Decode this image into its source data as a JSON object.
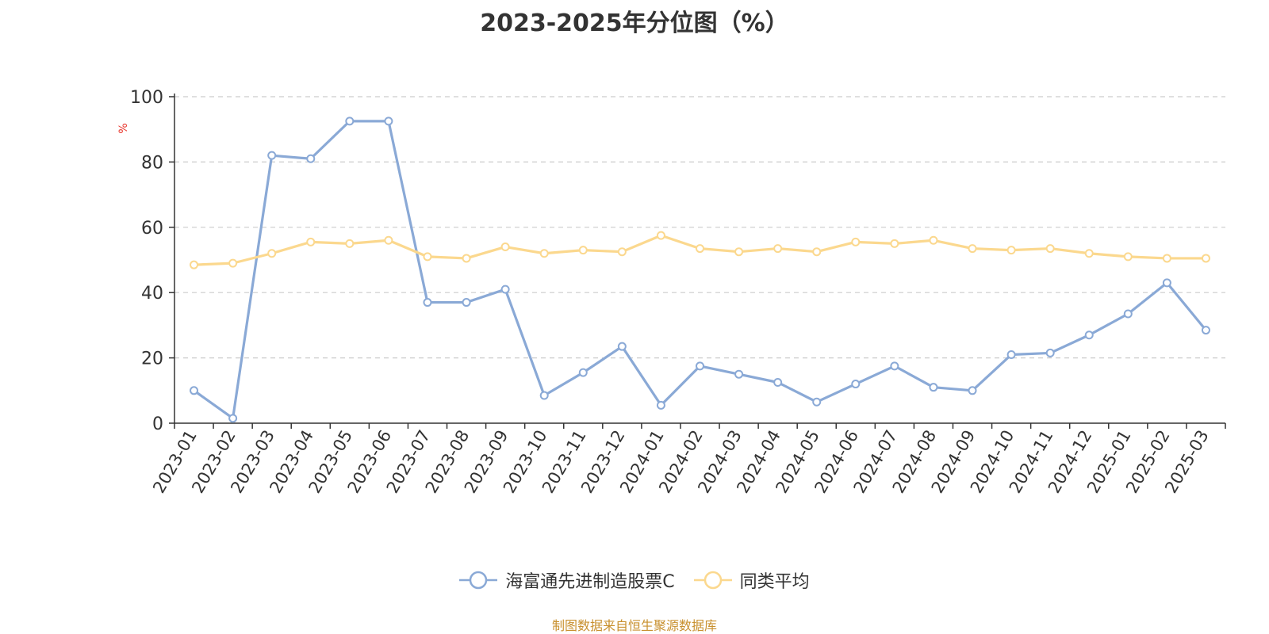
{
  "chart_data": {
    "type": "line",
    "title": "2023-2025年分位图（%）",
    "ylabel": "%",
    "xlabel": "",
    "ylim": [
      0,
      100
    ],
    "yticks": [
      0,
      20,
      40,
      60,
      80,
      100
    ],
    "grid": true,
    "legend_position": "bottom",
    "categories": [
      "2023-01",
      "2023-02",
      "2023-03",
      "2023-04",
      "2023-05",
      "2023-06",
      "2023-07",
      "2023-08",
      "2023-09",
      "2023-10",
      "2023-11",
      "2023-12",
      "2024-01",
      "2024-02",
      "2024-03",
      "2024-04",
      "2024-05",
      "2024-06",
      "2024-07",
      "2024-08",
      "2024-09",
      "2024-10",
      "2024-11",
      "2024-12",
      "2025-01",
      "2025-02",
      "2025-03"
    ],
    "series": [
      {
        "name": "海富通先进制造股票C",
        "color": "#8aa9d6",
        "values": [
          10,
          1.5,
          82,
          81,
          92.5,
          92.5,
          37,
          37,
          41,
          8.5,
          15.5,
          23.5,
          5.5,
          17.5,
          15,
          12.5,
          6.5,
          12,
          17.5,
          11,
          10,
          21,
          21.5,
          27,
          33.5,
          43,
          28.5
        ]
      },
      {
        "name": "同类平均",
        "color": "#fbd88e",
        "values": [
          48.5,
          49,
          52,
          55.5,
          55,
          56,
          51,
          50.5,
          54,
          52,
          53,
          52.5,
          57.5,
          53.5,
          52.5,
          53.5,
          52.5,
          55.5,
          55,
          56,
          53.5,
          53,
          53.5,
          52,
          51,
          50.5,
          50.5
        ]
      }
    ]
  },
  "source_note": "制图数据来自恒生聚源数据库",
  "colors": {
    "axis": "#333333",
    "grid": "#cccccc",
    "ylabel": "#e8332a",
    "source": "#c8902e"
  }
}
